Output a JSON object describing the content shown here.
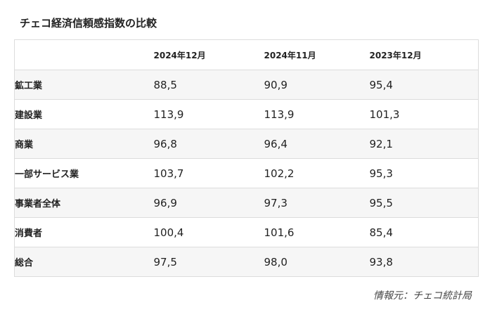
{
  "title": "チェコ経済信頼感指数の比較",
  "table": {
    "headers": [
      "",
      "2024年12月",
      "2024年11月",
      "2023年12月"
    ],
    "rows": [
      {
        "label": "鉱工業",
        "values": [
          "88,5",
          "90,9",
          "95,4"
        ]
      },
      {
        "label": "建設業",
        "values": [
          "113,9",
          "113,9",
          "101,3"
        ]
      },
      {
        "label": "商業",
        "values": [
          "96,8",
          "96,4",
          "92,1"
        ]
      },
      {
        "label": "一部サービス業",
        "values": [
          "103,7",
          "102,2",
          "95,3"
        ]
      },
      {
        "label": "事業者全体",
        "values": [
          "96,9",
          "97,3",
          "95,5"
        ]
      },
      {
        "label": "消費者",
        "values": [
          "100,4",
          "101,6",
          "85,4"
        ]
      },
      {
        "label": "総合",
        "values": [
          "97,5",
          "98,0",
          "93,8"
        ]
      }
    ]
  },
  "source": "情報元：チェコ統計局"
}
